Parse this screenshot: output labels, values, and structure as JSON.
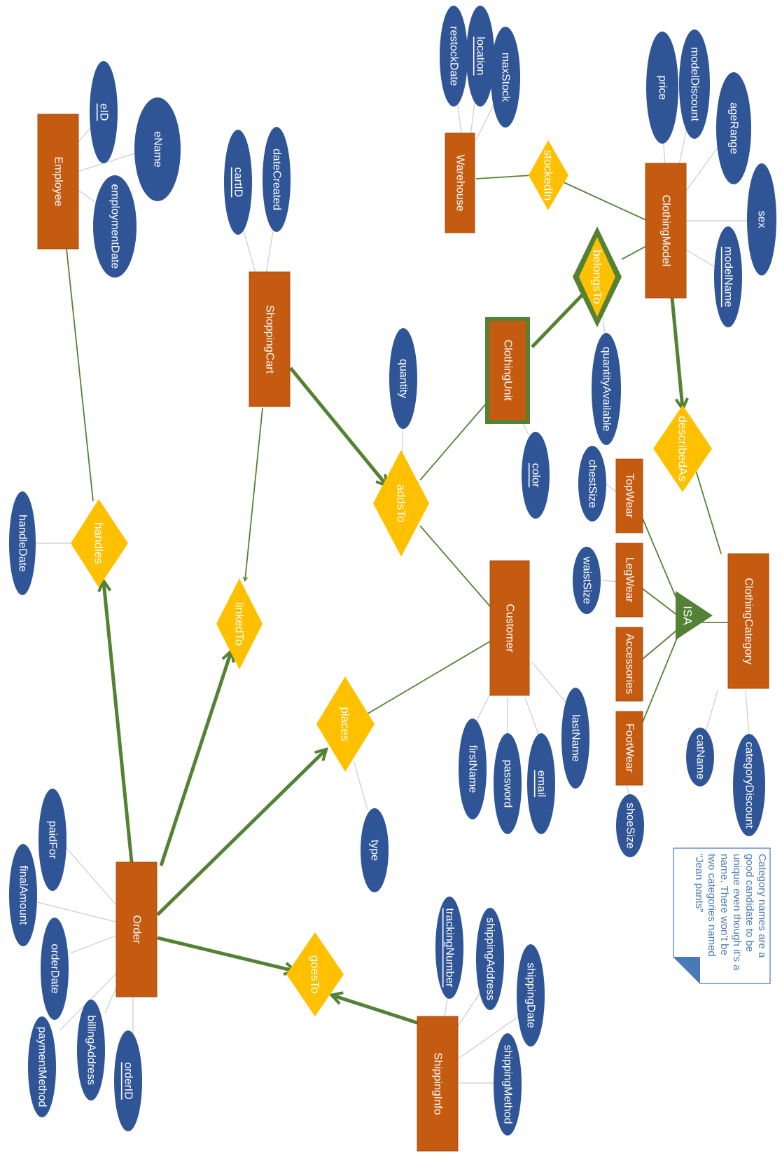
{
  "colors": {
    "entity_fill": "#c55a11",
    "entity_stroke": "#a84d0e",
    "relationship_fill": "#ffc000",
    "attribute_fill": "#2f5597",
    "line_green": "#548235",
    "line_gray": "#c9ccd6",
    "note_border": "#4a7ab5",
    "note_text": "#4a7ab5"
  },
  "entities": {
    "employee": "Employee",
    "shopping_cart": "ShoppingCart",
    "warehouse": "Warehouse",
    "clothing_model": "ClothingModel",
    "clothing_unit": "ClothingUnit",
    "customer": "Customer",
    "clothing_category": "ClothingCategory",
    "top_wear": "TopWear",
    "leg_wear": "LegWear",
    "accessories": "Accessories",
    "foot_wear": "FootWear",
    "order": "Order",
    "shipping_info": "ShippingInfo"
  },
  "relationships": {
    "handles": "handles",
    "linked_to": "linkedTo",
    "adds_to": "addsTo",
    "places": "places",
    "goes_to": "goesTo",
    "stocked_in": "stockedIn",
    "belongs_to": "belongsTo",
    "described_as": "describedAs",
    "isa": "ISA"
  },
  "attributes": {
    "eid": "eID",
    "ename": "eName",
    "employment_date": "employmentDate",
    "cart_id": "cartID",
    "date_created": "dateCreated",
    "restock_date": "restockDate",
    "location": "location",
    "max_stock": "maxStock",
    "price": "price",
    "model_discount": "modelDiscount",
    "age_range": "ageRange",
    "sex": "sex",
    "model_name": "modelName",
    "quantity_available": "quantityAvailable",
    "quantity": "quantity",
    "color": "color",
    "handle_date": "handleDate",
    "chest_size": "chestSize",
    "waist_size": "waistSize",
    "shoe_size": "shoeSize",
    "cat_name": "catName",
    "category_discount": "categoryDiscount",
    "first_name": "firstName",
    "password": "password",
    "email": "email",
    "last_name": "lastName",
    "type": "type",
    "paid_for": "paidFor",
    "final_amount": "finalAmount",
    "order_date": "orderDate",
    "payment_method": "paymentMethod",
    "billing_address": "billingAddress",
    "order_id": "orderID",
    "tracking_number": "trackingNumber",
    "shipping_address": "shippingAddress",
    "shipping_date": "shippingDate",
    "shipping_method": "shippingMethod"
  },
  "note": {
    "lines": [
      "Category names are a",
      "good candidate to be",
      "unique even though it’s a",
      "name. There won’t be",
      "two categories named",
      "“Jean pants”"
    ]
  }
}
